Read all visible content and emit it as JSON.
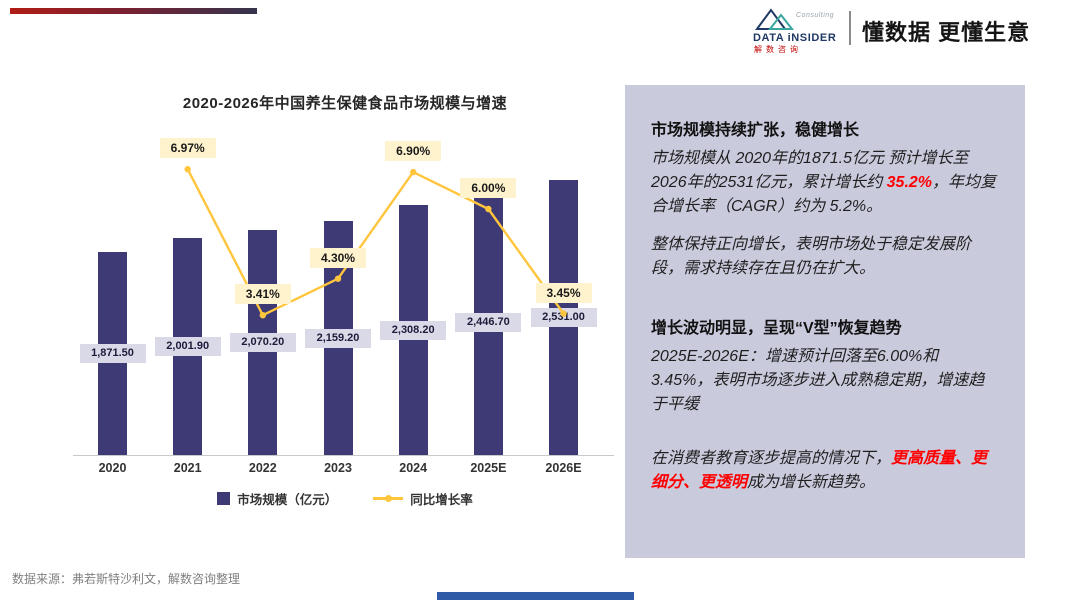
{
  "header": {
    "logo": {
      "brand": "DATA iNSIDER",
      "brand_sub": "解数咨询",
      "consulting": "Consulting"
    },
    "slogan": "懂数据 更懂生意"
  },
  "chart_data": {
    "type": "bar",
    "subtype": "bar+line-combo",
    "title": "2020-2026年中国养生保健食品市场规模与增速",
    "categories": [
      "2020",
      "2021",
      "2022",
      "2023",
      "2024",
      "2025E",
      "2026E"
    ],
    "series": [
      {
        "name": "市场规模（亿元）",
        "type": "bar",
        "axis": "left",
        "values": [
          1871.5,
          2001.9,
          2070.2,
          2159.2,
          2308.2,
          2446.7,
          2531.0
        ],
        "labels": [
          "1,871.50",
          "2,001.90",
          "2,070.20",
          "2,159.20",
          "2,308.20",
          "2,446.70",
          "2,531.00"
        ]
      },
      {
        "name": "同比增长率",
        "type": "line",
        "axis": "right",
        "values": [
          null,
          6.97,
          3.41,
          4.3,
          6.9,
          6.0,
          3.45
        ],
        "labels": [
          "",
          "6.97%",
          "3.41%",
          "4.30%",
          "6.90%",
          "6.00%",
          "3.45%"
        ]
      }
    ],
    "ylim": [
      0,
      2800
    ],
    "y2lim_percent": [
      0,
      8
    ],
    "grid": false,
    "legend_position": "bottom",
    "colors": {
      "bar": "#3d3a75",
      "line": "#ffc53d",
      "bar_label_bg": "#d9d9e8",
      "line_label_bg": "#fff3cd",
      "panel_bg": "#cacadd",
      "accent_red": "#ff0000"
    }
  },
  "panel": {
    "section1": {
      "title": "市场规模持续扩张，稳健增长",
      "body_runs": [
        {
          "text": "市场规模从 2020年的1871.5亿元 预计增长至 2026年的2531亿元，累计增长约 ",
          "style": "normal"
        },
        {
          "text": "35.2%",
          "style": "red"
        },
        {
          "text": "，年均复合增长率（CAGR）约为 5.2%。",
          "style": "normal"
        }
      ],
      "body2": "整体保持正向增长，表明市场处于稳定发展阶段，需求持续存在且仍在扩大。"
    },
    "section2": {
      "title": "增长波动明显，呈现“V型”恢复趋势",
      "body": "2025E-2026E：增速预计回落至6.00%和3.45%，表明市场逐步进入成熟稳定期，增速趋于平缓",
      "body2_runs": [
        {
          "text": "在消费者教育逐步提高的情况下，",
          "style": "normal"
        },
        {
          "text": "更高质量、更细分、更透明",
          "style": "red"
        },
        {
          "text": "成为增长新趋势。",
          "style": "normal"
        }
      ]
    }
  },
  "footer": {
    "source": "数据来源：弗若斯特沙利文，解数咨询整理"
  }
}
